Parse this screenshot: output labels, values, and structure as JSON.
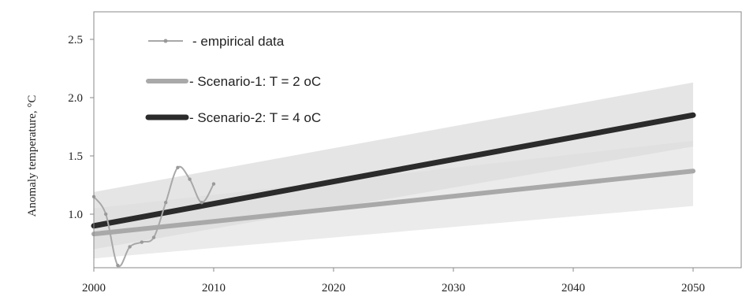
{
  "chart_data": {
    "type": "line",
    "title": "",
    "xlabel": "",
    "ylabel": "Anomaly  temperature, °C",
    "xlim": [
      2000,
      2053
    ],
    "ylim": [
      0.5,
      2.75
    ],
    "x_ticks": [
      "2000",
      "2010",
      "2020",
      "2030",
      "2040",
      "2050"
    ],
    "y_ticks": [
      "1.0",
      "1.5",
      "2.0",
      "2.5"
    ],
    "grid": false,
    "legend_position": "top-left",
    "series": [
      {
        "name": "- empirical data",
        "color": "#a8a8a8",
        "style": "thin-line-markers",
        "x": [
          2000,
          2001,
          2002,
          2003,
          2004,
          2005,
          2006,
          2007,
          2008,
          2009,
          2010
        ],
        "y": [
          1.15,
          1.0,
          0.56,
          0.72,
          0.76,
          0.8,
          1.1,
          1.4,
          1.3,
          1.1,
          1.26
        ]
      },
      {
        "name": "- Scenario-1: T = 2 oC",
        "color": "#a9a9a9",
        "style": "thick-line",
        "x": [
          2000,
          2050
        ],
        "y": [
          0.83,
          1.37
        ],
        "band_lower": [
          0.62,
          1.07
        ],
        "band_upper": [
          1.05,
          1.63
        ]
      },
      {
        "name": "- Scenario-2: T = 4 oC",
        "color": "#2b2b2b",
        "style": "thick-line",
        "x": [
          2000,
          2050
        ],
        "y": [
          0.9,
          1.85
        ],
        "band_lower": [
          0.7,
          1.58
        ],
        "band_upper": [
          1.19,
          2.13
        ]
      }
    ]
  }
}
